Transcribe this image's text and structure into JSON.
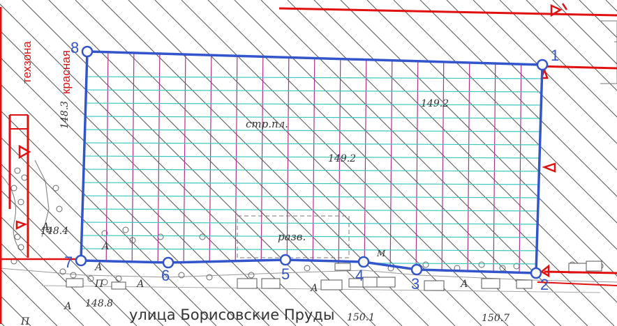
{
  "map": {
    "zone_labels": {
      "techzone": "техзона",
      "red": "красная"
    },
    "elevations": {
      "top_left": "148.3",
      "center_right": "149.2",
      "center": "149.2",
      "left": "148.4",
      "bottom_left": "148.8",
      "bottom_center": "150.1",
      "bottom_right": "150.7"
    },
    "letters": {
      "a": "А",
      "p": "П",
      "m": "М"
    },
    "annotations": {
      "construction_site": "стр.пл.",
      "excavation": "разв."
    },
    "street_name": "улица Борисовские Пруды",
    "vertices": [
      "1",
      "2",
      "3",
      "4",
      "5",
      "6",
      "7",
      "8"
    ],
    "colors": {
      "boundary": "#3355cc",
      "red_line": "#e01010",
      "hatch": "#555555",
      "grid_vertical": "#b0308a",
      "grid_horizontal": "#3cc6c0"
    }
  }
}
